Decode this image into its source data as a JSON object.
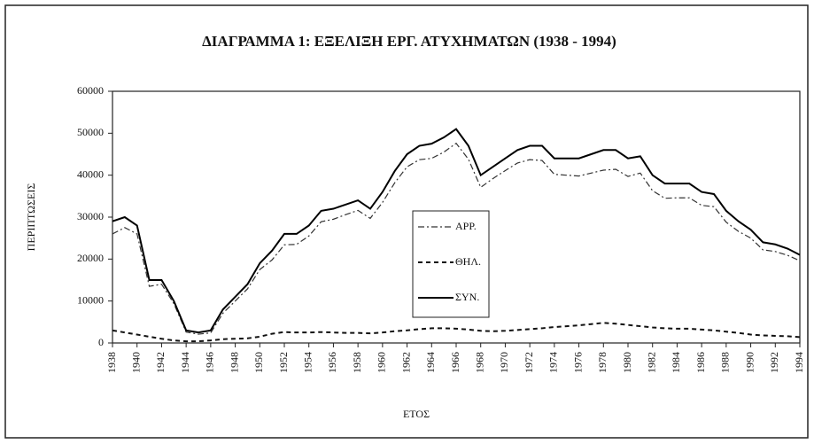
{
  "chart_data": {
    "type": "line",
    "title": "ΔΙΑΓΡΑΜΜΑ 1: ΕΞΕΛΙΞΗ ΕΡΓ.  ΑΤΥΧΗΜΑΤΩΝ (1938 - 1994)",
    "x_label": "ΕΤΟΣ",
    "y_label": "ΠΕΡΙΠΤΩΣΕΙΣ",
    "x": [
      1938,
      1939,
      1940,
      1941,
      1942,
      1943,
      1944,
      1945,
      1946,
      1947,
      1948,
      1949,
      1950,
      1951,
      1952,
      1953,
      1954,
      1955,
      1956,
      1957,
      1958,
      1959,
      1960,
      1961,
      1962,
      1963,
      1964,
      1965,
      1966,
      1967,
      1968,
      1969,
      1970,
      1971,
      1972,
      1973,
      1974,
      1975,
      1976,
      1977,
      1978,
      1979,
      1980,
      1981,
      1982,
      1983,
      1984,
      1985,
      1986,
      1987,
      1988,
      1989,
      1990,
      1991,
      1992,
      1993,
      1994
    ],
    "series": [
      {
        "name": "ΑΡΡ.",
        "color": "#333333",
        "dash": "dashdot",
        "values": [
          26000,
          27500,
          26000,
          13500,
          14000,
          9400,
          2600,
          2100,
          2400,
          7100,
          10000,
          12900,
          17500,
          19800,
          23400,
          23500,
          25500,
          28900,
          29500,
          30600,
          31600,
          29700,
          33500,
          38200,
          42000,
          43700,
          44000,
          45500,
          47600,
          43800,
          37100,
          39200,
          41100,
          42900,
          43700,
          43500,
          40200,
          40000,
          39800,
          40500,
          41200,
          41400,
          39700,
          40500,
          36300,
          34500,
          34600,
          34600,
          32800,
          32500,
          28800,
          26600,
          25000,
          22200,
          21800,
          20900,
          19600
        ]
      },
      {
        "name": "ΘΗΛ.",
        "color": "#111111",
        "dash": "dashed",
        "values": [
          3000,
          2500,
          2000,
          1500,
          1000,
          600,
          400,
          400,
          600,
          900,
          1000,
          1100,
          1500,
          2200,
          2600,
          2500,
          2500,
          2600,
          2500,
          2400,
          2400,
          2300,
          2500,
          2800,
          3000,
          3300,
          3500,
          3500,
          3400,
          3200,
          2900,
          2800,
          2900,
          3100,
          3300,
          3500,
          3800,
          4000,
          4200,
          4500,
          4800,
          4600,
          4300,
          4000,
          3700,
          3500,
          3400,
          3400,
          3200,
          3000,
          2700,
          2400,
          2000,
          1800,
          1700,
          1600,
          1400
        ]
      },
      {
        "name": "ΣΥΝ.",
        "color": "#000000",
        "dash": "solid",
        "values": [
          29000,
          30000,
          28000,
          15000,
          15000,
          10000,
          3000,
          2500,
          3000,
          8000,
          11000,
          14000,
          19000,
          22000,
          26000,
          26000,
          28000,
          31500,
          32000,
          33000,
          34000,
          32000,
          36000,
          41000,
          45000,
          47000,
          47500,
          49000,
          51000,
          47000,
          40000,
          42000,
          44000,
          46000,
          47000,
          47000,
          44000,
          44000,
          44000,
          45000,
          46000,
          46000,
          44000,
          44500,
          40000,
          38000,
          38000,
          38000,
          36000,
          35500,
          31500,
          29000,
          27000,
          24000,
          23500,
          22500,
          21000
        ]
      }
    ],
    "xlim": [
      1938,
      1994
    ],
    "xticks": [
      1938,
      1940,
      1942,
      1944,
      1946,
      1948,
      1950,
      1952,
      1954,
      1956,
      1958,
      1960,
      1962,
      1964,
      1966,
      1968,
      1970,
      1972,
      1974,
      1976,
      1978,
      1980,
      1982,
      1984,
      1986,
      1988,
      1990,
      1992,
      1994
    ],
    "ylim": [
      0,
      60000
    ],
    "yticks": [
      0,
      10000,
      20000,
      30000,
      40000,
      50000,
      60000
    ],
    "grid": false,
    "legend": "center"
  }
}
